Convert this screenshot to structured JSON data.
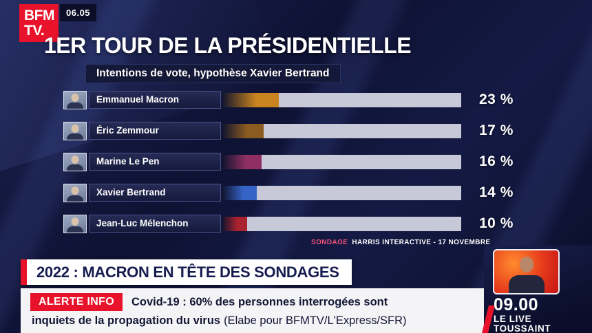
{
  "header": {
    "logo_line1": "BFM",
    "logo_line2": "TV.",
    "time": "06.05"
  },
  "chart": {
    "title": "1ER TOUR DE LA PRÉSIDENTIELLE",
    "subtitle": "Intentions de vote, hypothèse Xavier Bertrand",
    "source_label": "SONDAGE",
    "source_text": "HARRIS INTERACTIVE - 17 NOVEMBRE"
  },
  "chart_data": {
    "type": "bar",
    "orientation": "horizontal",
    "title": "1er tour de la présidentielle",
    "subtitle": "Intentions de vote, hypothèse Xavier Bertrand",
    "categories": [
      "Emmanuel Macron",
      "Éric Zemmour",
      "Marine Le Pen",
      "Xavier Bertrand",
      "Jean-Luc Mélenchon"
    ],
    "values": [
      23,
      17,
      16,
      14,
      10
    ],
    "value_labels": [
      "23 %",
      "17 %",
      "16 %",
      "14 %",
      "10 %"
    ],
    "unit": "%",
    "xlim": [
      0,
      100
    ],
    "bar_colors": [
      "#c9841f",
      "#8a5c20",
      "#8e2e62",
      "#3563c6",
      "#a8232e"
    ],
    "source": "Sondage Harris Interactive - 17 novembre"
  },
  "banner": {
    "headline": "2022 : MACRON EN TÊTE DES SONDAGES"
  },
  "ticker": {
    "alert_label": "ALERTE INFO",
    "line1": "Covid-19 : 60% des personnes interrogées sont",
    "line2_bold": "inquiets de la propagation du virus",
    "line2_regular": "(Elabe pour BFMTV/L'Express/SFR)"
  },
  "live_panel": {
    "time": "09.00",
    "label_line1": "LE LIVE",
    "label_line2": "TOUSSAINT"
  },
  "colors": {
    "brand_red": "#e8132b",
    "background_navy": "#0e1233",
    "track_gray": "#c7c9d8",
    "headline_text": "#171c50"
  }
}
